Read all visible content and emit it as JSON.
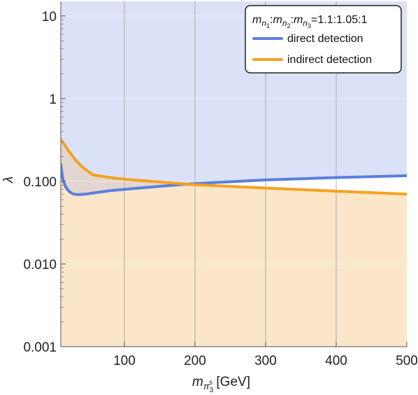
{
  "chart_data": {
    "type": "line",
    "title": "",
    "xlabel": "m_{π_3^s} [GeV]",
    "xlabel_parts": {
      "main": "m",
      "sub": "π",
      "subsub": "3",
      "supsup": "s",
      "unit": "[GeV]"
    },
    "ylabel": "λ",
    "xlim": [
      10,
      500
    ],
    "ylim": [
      0.001,
      15
    ],
    "yscale": "log",
    "grid": "vertical",
    "x_ticks": [
      100,
      200,
      300,
      400,
      500
    ],
    "x_tick_labels": [
      "100",
      "200",
      "300",
      "400",
      "500"
    ],
    "y_ticks": [
      0.001,
      0.01,
      0.1,
      1,
      10
    ],
    "y_tick_labels": [
      "0.001",
      "0.010",
      "0.100",
      "1",
      "10"
    ],
    "legend": {
      "placement": "top-right",
      "title": "m_{n_1}:m_{n_2}:m_{n_3}=1.1:1.05:1",
      "title_parts": {
        "ratio": "=1.1:1.05:1"
      }
    },
    "series": [
      {
        "name": "direct detection",
        "color": "#5a7fdf",
        "fill_color": "#dbe2f7",
        "fill": "above",
        "x": [
          10,
          13,
          17,
          22,
          28,
          35,
          45,
          60,
          80,
          100,
          150,
          200,
          300,
          400,
          500
        ],
        "y": [
          0.16,
          0.105,
          0.085,
          0.075,
          0.07,
          0.069,
          0.07,
          0.073,
          0.077,
          0.08,
          0.087,
          0.094,
          0.104,
          0.111,
          0.117
        ]
      },
      {
        "name": "indirect detection",
        "color": "#f6a21e",
        "fill_color": "#fbe6c9",
        "fill": "below",
        "x": [
          10,
          15,
          20,
          30,
          40,
          55,
          80,
          100,
          150,
          200,
          300,
          400,
          500
        ],
        "y": [
          0.32,
          0.28,
          0.24,
          0.185,
          0.15,
          0.12,
          0.111,
          0.106,
          0.098,
          0.091,
          0.083,
          0.076,
          0.07
        ]
      }
    ]
  }
}
